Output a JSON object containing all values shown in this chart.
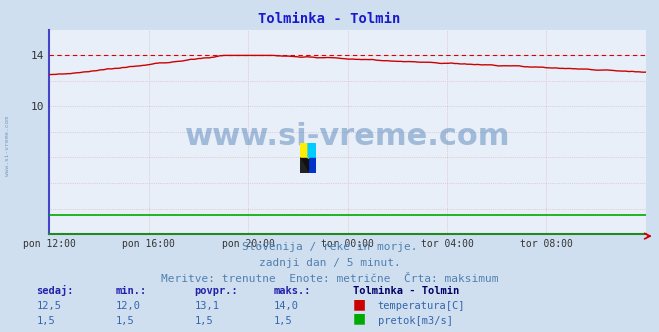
{
  "title": "Tolminka - Tolmin",
  "title_color": "#1a1acc",
  "bg_color": "#d0dff0",
  "plot_bg_color": "#e8eff8",
  "grid_color_h": "#d8b0b0",
  "grid_color_v": "#d8b0b0",
  "xlabel_ticks": [
    "pon 12:00",
    "pon 16:00",
    "pon 20:00",
    "tor 00:00",
    "tor 04:00",
    "tor 08:00"
  ],
  "ylim": [
    0,
    16.0
  ],
  "ytick_vals": [
    0,
    2,
    4,
    6,
    8,
    10,
    12,
    14
  ],
  "ytick_labels": [
    "",
    "",
    "",
    "",
    "",
    "10",
    "",
    "14"
  ],
  "temp_color": "#cc0000",
  "flow_color": "#00aa00",
  "max_line_color": "#dd0000",
  "spine_left_color": "#4444cc",
  "spine_bottom_color": "#228822",
  "watermark_text": "www.si-vreme.com",
  "watermark_color": "#4a7ab5",
  "watermark_alpha": 0.45,
  "watermark_fontsize": 22,
  "sidewater_text": "www.si-vreme.com",
  "sidewater_color": "#5080b0",
  "logo_colors": [
    "#ffee00",
    "#00aaff",
    "#003399",
    "#111111"
  ],
  "footer_line1": "Slovenija / reke in morje.",
  "footer_line2": "zadnji dan / 5 minut.",
  "footer_line3": "Meritve: trenutne  Enote: metrične  Črta: maksimum",
  "footer_color": "#5080b0",
  "footer_fontsize": 8,
  "table_headers": [
    "sedaj:",
    "min.:",
    "povpr.:",
    "maks.:"
  ],
  "table_header_color": "#2222aa",
  "table_label": "Tolminka - Tolmin",
  "table_label_color": "#000066",
  "table_value_color": "#3366aa",
  "table_temp_vals": [
    "12,5",
    "12,0",
    "13,1",
    "14,0"
  ],
  "table_flow_vals": [
    "1,5",
    "1,5",
    "1,5",
    "1,5"
  ],
  "table_temp_label": "temperatura[C]",
  "table_flow_label": "pretok[m3/s]",
  "n_points": 288
}
